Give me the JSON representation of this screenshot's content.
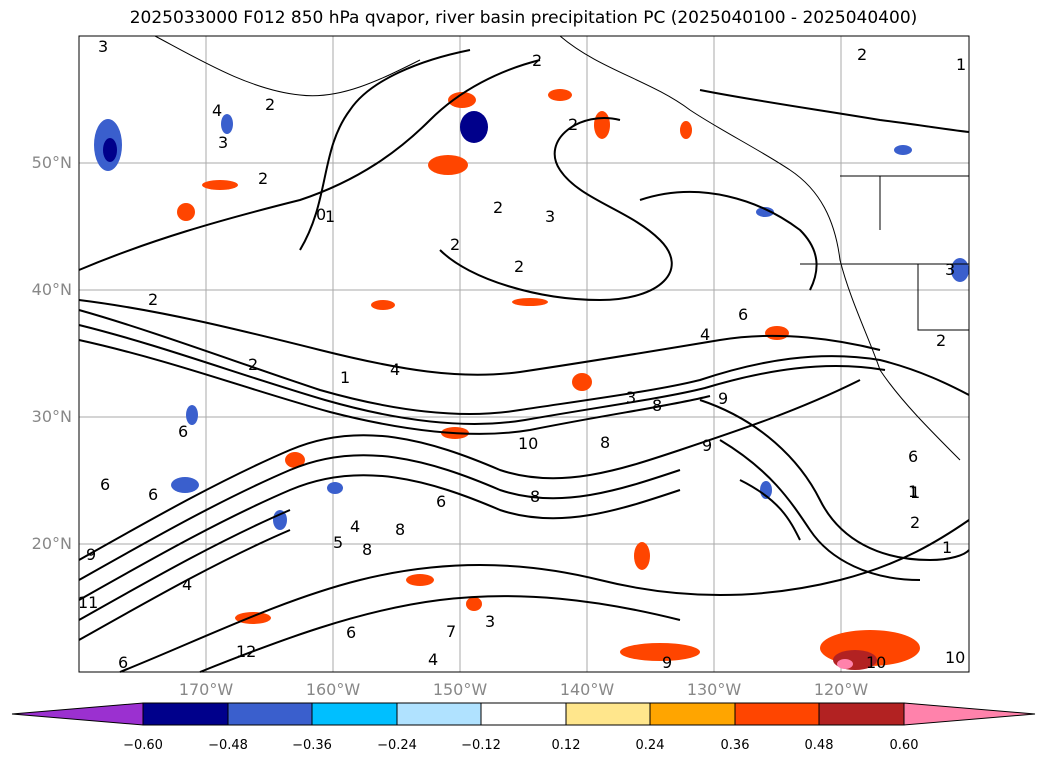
{
  "title": "2025033000 F012 850 hPa qvapor, river basin precipitation PC (2025040100 - 2025040400)",
  "lat_labels": [
    "50°N",
    "40°N",
    "30°N",
    "20°N"
  ],
  "lon_labels": [
    "170°W",
    "160°W",
    "150°W",
    "140°W",
    "130°W",
    "120°W"
  ],
  "contour_labels": [
    "3",
    "2",
    "4",
    "3",
    "2",
    "2",
    "2",
    "2",
    "2",
    "2",
    "2",
    "1",
    "3",
    "1",
    "2",
    "2",
    "4",
    "6",
    "4",
    "1",
    "6",
    "3",
    "8",
    "10",
    "8",
    "9",
    "9",
    "6",
    "1",
    "6",
    "6",
    "6",
    "8",
    "8",
    "8",
    "5",
    "4",
    "1",
    "2",
    "9",
    "11",
    "6",
    "4",
    "12",
    "6",
    "7",
    "3",
    "4",
    "9",
    "10",
    "10",
    "1",
    "2",
    "3",
    "0"
  ],
  "colorbar": {
    "ticks": [
      "−0.60",
      "−0.48",
      "−0.36",
      "−0.24",
      "−0.12",
      "0.12",
      "0.24",
      "0.36",
      "0.48",
      "0.60"
    ],
    "colors": [
      "#9b30d0",
      "#00008b",
      "#3a5fcd",
      "#00bfff",
      "#b0e2ff",
      "#ffffff",
      "#ffe68c",
      "#ffa500",
      "#ff4500",
      "#b22222",
      "#ff82ab"
    ]
  }
}
